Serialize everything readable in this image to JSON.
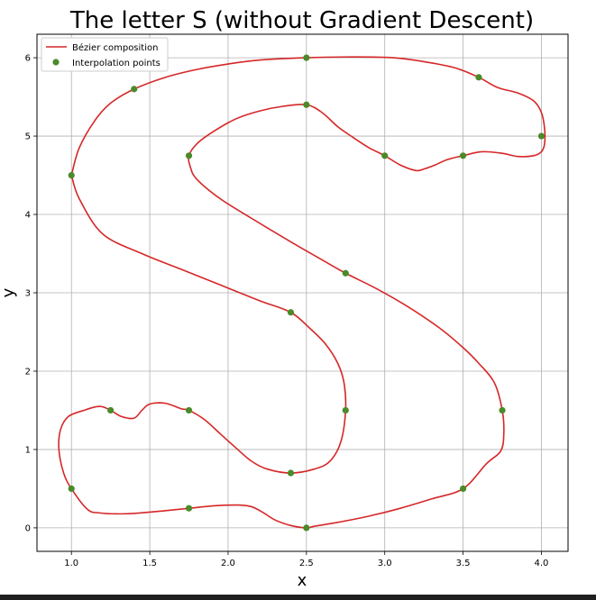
{
  "chart_data": {
    "type": "line",
    "title": "The letter S (without Gradient Descent)",
    "xlabel": "x",
    "ylabel": "y",
    "xlim": [
      0.78,
      4.17
    ],
    "ylim": [
      -0.3,
      6.3
    ],
    "xticks": [
      "1.0",
      "1.5",
      "2.0",
      "2.5",
      "3.0",
      "3.5",
      "4.0"
    ],
    "yticks": [
      "0",
      "1",
      "2",
      "3",
      "4",
      "5",
      "6"
    ],
    "grid": true,
    "legend_position": "top-left",
    "series": [
      {
        "name": "Bézier composition",
        "type": "line",
        "color": "#d62728",
        "x": [
          1.0,
          1.05,
          1.15,
          1.25,
          1.4,
          1.6,
          1.8,
          2.0,
          2.2,
          2.5,
          2.8,
          3.05,
          3.25,
          3.45,
          3.6,
          3.72,
          3.85,
          3.95,
          4.0,
          4.02,
          4.02,
          4.0,
          3.95,
          3.85,
          3.75,
          3.62,
          3.5,
          3.4,
          3.32,
          3.25,
          3.2,
          3.1,
          3.0,
          2.9,
          2.8,
          2.7,
          2.6,
          2.5,
          2.35,
          2.2,
          2.05,
          1.9,
          1.8,
          1.75,
          1.76,
          1.8,
          1.95,
          2.15,
          2.4,
          2.6,
          2.75,
          2.95,
          3.15,
          3.35,
          3.5,
          3.6,
          3.7,
          3.75,
          3.76,
          3.74,
          3.65,
          3.5,
          3.3,
          3.1,
          2.9,
          2.7,
          2.55,
          2.5,
          2.4,
          2.3,
          2.22,
          2.15,
          2.08,
          2.0,
          1.9,
          1.75,
          1.55,
          1.35,
          1.18,
          1.1,
          1.0,
          0.95,
          0.92,
          0.93,
          0.98,
          1.08,
          1.18,
          1.25,
          1.32,
          1.4,
          1.45,
          1.5,
          1.6,
          1.7,
          1.75,
          1.85,
          1.95,
          2.05,
          2.15,
          2.25,
          2.4,
          2.55,
          2.65,
          2.72,
          2.75,
          2.74,
          2.7,
          2.62,
          2.52,
          2.4,
          2.2,
          1.95,
          1.7,
          1.45,
          1.2,
          1.05,
          1.0
        ],
        "y": [
          4.5,
          4.85,
          5.2,
          5.42,
          5.6,
          5.75,
          5.85,
          5.92,
          5.97,
          6.0,
          6.01,
          6.0,
          5.95,
          5.87,
          5.75,
          5.62,
          5.55,
          5.45,
          5.3,
          5.1,
          4.9,
          4.8,
          4.75,
          4.74,
          4.78,
          4.8,
          4.75,
          4.7,
          4.63,
          4.58,
          4.56,
          4.63,
          4.75,
          4.85,
          4.98,
          5.12,
          5.3,
          5.4,
          5.38,
          5.32,
          5.22,
          5.05,
          4.9,
          4.75,
          4.6,
          4.45,
          4.2,
          3.95,
          3.65,
          3.42,
          3.25,
          3.05,
          2.82,
          2.55,
          2.3,
          2.1,
          1.85,
          1.5,
          1.2,
          0.98,
          0.82,
          0.5,
          0.37,
          0.25,
          0.15,
          0.07,
          0.02,
          0.0,
          0.03,
          0.1,
          0.2,
          0.27,
          0.29,
          0.29,
          0.28,
          0.25,
          0.21,
          0.18,
          0.19,
          0.24,
          0.5,
          0.7,
          1.0,
          1.25,
          1.42,
          1.5,
          1.55,
          1.5,
          1.42,
          1.4,
          1.5,
          1.58,
          1.59,
          1.52,
          1.5,
          1.38,
          1.2,
          1.02,
          0.85,
          0.75,
          0.7,
          0.75,
          0.85,
          1.1,
          1.5,
          1.85,
          2.1,
          2.35,
          2.55,
          2.75,
          2.9,
          3.1,
          3.3,
          3.5,
          3.75,
          4.2,
          4.5
        ]
      },
      {
        "name": "Interpolation points",
        "type": "scatter",
        "color": "#4a8a2a",
        "x": [
          1.0,
          1.4,
          2.5,
          3.6,
          4.0,
          3.5,
          3.0,
          2.5,
          1.75,
          2.75,
          3.75,
          3.5,
          2.5,
          1.75,
          1.0,
          1.25,
          1.75,
          2.4,
          2.75,
          2.4
        ],
        "y": [
          4.5,
          5.6,
          6.0,
          5.75,
          5.0,
          4.75,
          4.75,
          5.4,
          4.75,
          3.25,
          1.5,
          0.5,
          0.0,
          0.25,
          0.5,
          1.5,
          1.5,
          0.7,
          1.5,
          2.75
        ]
      }
    ]
  }
}
